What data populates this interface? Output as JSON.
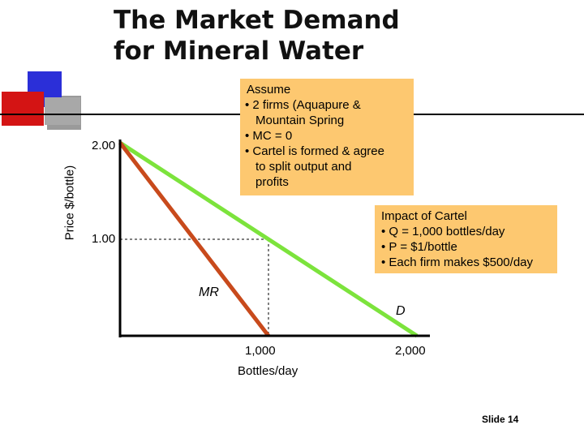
{
  "slide": {
    "title": "The Market Demand\nfor Mineral Water",
    "slide_number": "Slide 14"
  },
  "assume_box": {
    "heading": "Assume",
    "lines": [
      "• 2 firms (Aquapure &",
      "Mountain Spring",
      "• MC = 0",
      "• Cartel is formed & agree",
      "to split output and",
      "profits"
    ]
  },
  "impact_box": {
    "lines": [
      "Impact of Cartel",
      "• Q = 1,000 bottles/day",
      "• P = $1/bottle",
      "• Each firm makes $500/day"
    ]
  },
  "colors": {
    "demand": "#7ce33c",
    "mr": "#c84a1c",
    "box": "#fdc870",
    "logo_blue": "#2b2fd8",
    "logo_red": "#d41414",
    "logo_gray": "#9a9a9a"
  },
  "chart_data": {
    "type": "line",
    "title": "The Market Demand for Mineral Water",
    "xlabel": "Bottles/day",
    "ylabel": "Price $/bottle)",
    "xlim": [
      0,
      2100
    ],
    "ylim": [
      0,
      2.5
    ],
    "y_ticks": [
      "2.00",
      "1.00"
    ],
    "x_ticks": [
      "1,000",
      "2,000"
    ],
    "series": [
      {
        "name": "D",
        "x": [
          0,
          2000
        ],
        "y": [
          2.0,
          0.0
        ]
      },
      {
        "name": "MR",
        "x": [
          0,
          1000
        ],
        "y": [
          2.0,
          0.0
        ]
      }
    ],
    "reference_point": {
      "x": 1000,
      "y": 1.0
    },
    "grid": false
  }
}
